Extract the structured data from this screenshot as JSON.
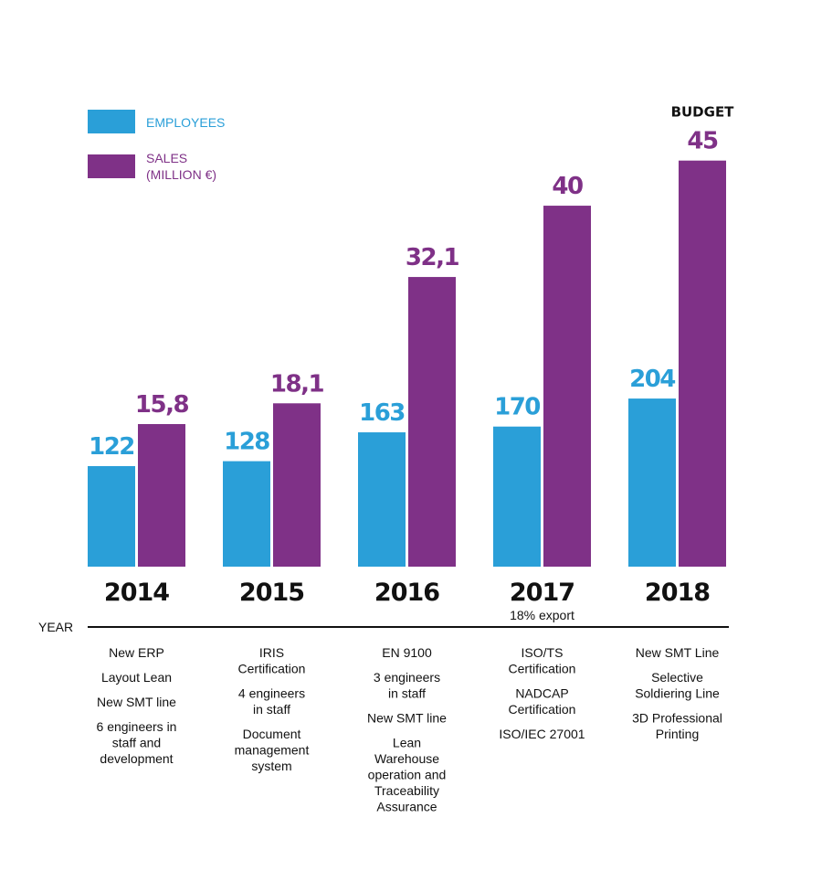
{
  "chart_data": {
    "type": "bar",
    "categories": [
      "2014",
      "2015",
      "2016",
      "2017",
      "2018"
    ],
    "series": [
      {
        "name": "EMPLOYEES",
        "values": [
          122,
          128,
          163,
          170,
          204
        ],
        "labels": [
          "122",
          "128",
          "163",
          "170",
          "204"
        ],
        "color": "#2a9fd8"
      },
      {
        "name": "SALES",
        "name_line2": "(MILLION €)",
        "values": [
          15.8,
          18.1,
          32.1,
          40,
          45
        ],
        "labels": [
          "15,8",
          "18,1",
          "32,1",
          "40",
          "45"
        ],
        "color": "#7f3187"
      }
    ],
    "xlabel": "YEAR",
    "annotations": [
      {
        "category": "2017",
        "text": "18% export"
      },
      {
        "category": "2018",
        "text": "BUDGET"
      }
    ],
    "milestones": [
      [
        "New ERP",
        "Layout Lean",
        "New SMT line",
        "6 engineers in\nstaff and\ndevelopment"
      ],
      [
        "IRIS\nCertification",
        "4 engineers\nin staff",
        "Document\nmanagement\nsystem"
      ],
      [
        "EN 9100",
        "3 engineers\nin staff",
        "New SMT line",
        "Lean\nWarehouse\noperation and\nTraceability\nAssurance"
      ],
      [
        "ISO/TS\nCertification",
        "NADCAP\nCertification",
        "ISO/IEC 27001"
      ],
      [
        "New SMT Line",
        "Selective\nSoldiering Line",
        "3D Professional\nPrinting"
      ]
    ],
    "legend": "top-left",
    "grid": false
  }
}
